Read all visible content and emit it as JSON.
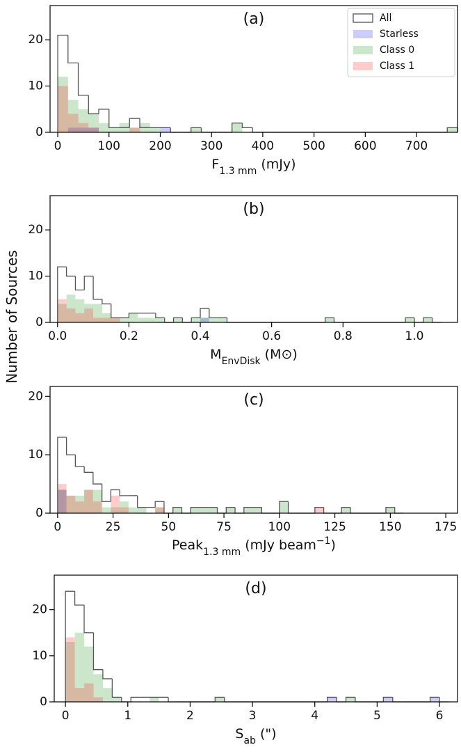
{
  "ylabel": "Number of Sources",
  "chart_data": [
    {
      "type": "histogram",
      "title": "(a)",
      "xlabel": [
        {
          "text": "F"
        },
        {
          "text": "1.3 mm",
          "style": "sub"
        },
        {
          "text": " (mJy)"
        }
      ],
      "xlim": [
        -15,
        780
      ],
      "xticks": [
        0,
        100,
        200,
        300,
        400,
        500,
        600,
        700
      ],
      "ylim": [
        0,
        27.4
      ],
      "yticks": [
        0,
        10,
        20
      ],
      "legend": "upper right",
      "bins": [
        0,
        20,
        40,
        60,
        80,
        100,
        120,
        140,
        160,
        180,
        200,
        220,
        240,
        260,
        280,
        300,
        320,
        340,
        360,
        380,
        400,
        420,
        440,
        460,
        480,
        500,
        520,
        540,
        560,
        580,
        600,
        620,
        640,
        660,
        680,
        700,
        720,
        740,
        760,
        780
      ],
      "series": [
        {
          "name": "All",
          "color": "#555555",
          "histtype": "step",
          "values": [
            21,
            15,
            8,
            4,
            5,
            1,
            1,
            3,
            1,
            1,
            1,
            0,
            0,
            1,
            0,
            0,
            0,
            2,
            1,
            0,
            0,
            0,
            0,
            0,
            0,
            0,
            0,
            0,
            0,
            0,
            0,
            0,
            0,
            0,
            0,
            0,
            0,
            0,
            1
          ]
        },
        {
          "name": "Starless",
          "color": "blue",
          "histtype": "stepfilled",
          "alpha": 0.2,
          "values": [
            0,
            1,
            1,
            1,
            0,
            0,
            0,
            0,
            0,
            0,
            1,
            0,
            0,
            0,
            0,
            0,
            0,
            0,
            0,
            0,
            0,
            0,
            0,
            0,
            0,
            0,
            0,
            0,
            0,
            0,
            0,
            0,
            0,
            0,
            0,
            0,
            0,
            0,
            0
          ]
        },
        {
          "name": "Class 0",
          "color": "green",
          "histtype": "stepfilled",
          "alpha": 0.2,
          "values": [
            12,
            7,
            5,
            4,
            2,
            1,
            2,
            1,
            2,
            1,
            0,
            0,
            0,
            1,
            0,
            0,
            0,
            2,
            0,
            0,
            0,
            0,
            0,
            0,
            0,
            0,
            0,
            0,
            0,
            0,
            0,
            0,
            0,
            0,
            0,
            0,
            0,
            0,
            1
          ]
        },
        {
          "name": "Class 1",
          "color": "red",
          "histtype": "stepfilled",
          "alpha": 0.2,
          "values": [
            10,
            4,
            2,
            1,
            0,
            0,
            0,
            1,
            0,
            0,
            0,
            0,
            0,
            0,
            0,
            0,
            0,
            0,
            0,
            0,
            0,
            0,
            0,
            0,
            0,
            0,
            0,
            0,
            0,
            0,
            0,
            0,
            0,
            0,
            0,
            0,
            0,
            0,
            0
          ]
        }
      ]
    },
    {
      "type": "histogram",
      "title": "(b)",
      "xlabel": [
        {
          "text": "M"
        },
        {
          "text": "EnvDisk",
          "style": "sub"
        },
        {
          "text": " (M⊙)"
        }
      ],
      "xlim": [
        -0.021,
        1.121
      ],
      "xticks": [
        {
          "value": 0,
          "label": "0.0"
        },
        {
          "value": 0.2,
          "label": "0.2"
        },
        {
          "value": 0.4,
          "label": "0.4"
        },
        {
          "value": 0.6,
          "label": "0.6"
        },
        {
          "value": 0.8,
          "label": "0.8"
        },
        {
          "value": 1,
          "label": "1.0"
        }
      ],
      "ylim": [
        0,
        27.4
      ],
      "yticks": [
        0,
        10,
        20
      ],
      "bins": [
        0,
        0.025,
        0.05,
        0.075,
        0.1,
        0.125,
        0.15,
        0.175,
        0.2,
        0.225,
        0.25,
        0.275,
        0.3,
        0.325,
        0.35,
        0.375,
        0.4,
        0.425,
        0.45,
        0.475,
        0.5,
        0.525,
        0.55,
        0.575,
        0.6,
        0.625,
        0.65,
        0.675,
        0.7,
        0.725,
        0.75,
        0.775,
        0.8,
        0.825,
        0.85,
        0.875,
        0.9,
        0.925,
        0.95,
        0.975,
        1,
        1.025,
        1.05,
        1.075
      ],
      "series": [
        {
          "name": "All",
          "color": "#555555",
          "histtype": "step",
          "values": [
            12,
            10,
            7,
            10,
            5,
            4,
            1,
            1,
            2,
            2,
            2,
            1,
            0,
            1,
            0,
            1,
            3,
            1,
            1,
            0,
            0,
            0,
            0,
            0,
            0,
            0,
            0,
            0,
            0,
            0,
            1,
            0,
            0,
            0,
            0,
            0,
            0,
            0,
            0,
            1,
            0,
            1,
            0
          ]
        },
        {
          "name": "Starless",
          "color": "blue",
          "histtype": "stepfilled",
          "alpha": 0.2,
          "values": [
            0,
            0,
            0,
            0,
            0,
            0,
            0,
            0,
            0,
            0,
            0,
            0,
            0,
            0,
            0,
            0,
            1,
            0,
            0,
            0,
            0,
            0,
            0,
            0,
            0,
            0,
            0,
            0,
            0,
            0,
            0,
            0,
            0,
            0,
            0,
            0,
            0,
            0,
            0,
            0,
            0,
            0,
            0
          ]
        },
        {
          "name": "Class 0",
          "color": "green",
          "histtype": "stepfilled",
          "alpha": 0.2,
          "values": [
            4,
            6,
            5,
            4,
            4,
            2,
            1,
            1,
            2,
            1,
            1,
            1,
            0,
            1,
            0,
            1,
            1,
            1,
            1,
            0,
            0,
            0,
            0,
            0,
            0,
            0,
            0,
            0,
            0,
            0,
            1,
            0,
            0,
            0,
            0,
            0,
            0,
            0,
            0,
            1,
            0,
            1,
            0
          ]
        },
        {
          "name": "Class 1",
          "color": "red",
          "histtype": "stepfilled",
          "alpha": 0.2,
          "values": [
            5,
            3,
            2,
            3,
            1,
            1,
            1,
            0,
            0,
            0,
            0,
            0,
            0,
            0,
            0,
            0,
            0,
            0,
            0,
            0,
            0,
            0,
            0,
            0,
            0,
            0,
            0,
            0,
            0,
            0,
            0,
            0,
            0,
            0,
            0,
            0,
            0,
            0,
            0,
            0,
            0,
            0,
            0
          ]
        }
      ]
    },
    {
      "type": "histogram",
      "title": "(c)",
      "xlabel": [
        {
          "text": "Peak"
        },
        {
          "text": "1.3 mm",
          "style": "sub"
        },
        {
          "text": " (mJy beam"
        },
        {
          "text": "−1",
          "style": "super"
        },
        {
          "text": ")"
        }
      ],
      "xlim": [
        -3.4,
        180.3
      ],
      "xticks": [
        0,
        25,
        50,
        75,
        100,
        125,
        150,
        175
      ],
      "ylim": [
        0,
        21.7
      ],
      "yticks": [
        0,
        10,
        20
      ],
      "bins": [
        0,
        4,
        8,
        12,
        16,
        20,
        24,
        28,
        32,
        36,
        40,
        44,
        48,
        52,
        56,
        60,
        64,
        68,
        72,
        76,
        80,
        84,
        88,
        92,
        96,
        100,
        104,
        108,
        112,
        116,
        120,
        124,
        128,
        132,
        136,
        140,
        144,
        148,
        152,
        156
      ],
      "series": [
        {
          "name": "All",
          "color": "#555555",
          "histtype": "step",
          "values": [
            13,
            10,
            8,
            7,
            5,
            2,
            4,
            3,
            3,
            1,
            1,
            2,
            0,
            1,
            0,
            1,
            1,
            1,
            0,
            1,
            0,
            1,
            1,
            0,
            0,
            2,
            0,
            0,
            0,
            1,
            0,
            0,
            1,
            0,
            0,
            0,
            0,
            1,
            0
          ]
        },
        {
          "name": "Starless",
          "color": "blue",
          "histtype": "stepfilled",
          "alpha": 0.2,
          "values": [
            4,
            0,
            0,
            0,
            0,
            0,
            0,
            0,
            0,
            0,
            0,
            0,
            0,
            0,
            0,
            0,
            0,
            0,
            0,
            0,
            0,
            0,
            0,
            0,
            0,
            0,
            0,
            0,
            0,
            0,
            0,
            0,
            0,
            0,
            0,
            0,
            0,
            0,
            0
          ]
        },
        {
          "name": "Class 0",
          "color": "green",
          "histtype": "stepfilled",
          "alpha": 0.2,
          "values": [
            4,
            3,
            3,
            4,
            4,
            1,
            1,
            2,
            1,
            1,
            0,
            1,
            0,
            1,
            0,
            1,
            1,
            1,
            0,
            1,
            0,
            1,
            1,
            0,
            0,
            2,
            0,
            0,
            0,
            0,
            0,
            0,
            1,
            0,
            0,
            0,
            0,
            1,
            0
          ]
        },
        {
          "name": "Class 1",
          "color": "red",
          "histtype": "stepfilled",
          "alpha": 0.2,
          "values": [
            5,
            3,
            2,
            4,
            2,
            0,
            3,
            1,
            0,
            0,
            0,
            1,
            0,
            0,
            0,
            0,
            0,
            0,
            0,
            0,
            0,
            0,
            0,
            0,
            0,
            0,
            0,
            0,
            0,
            1,
            0,
            0,
            0,
            0,
            0,
            0,
            0,
            0,
            0
          ]
        }
      ]
    },
    {
      "type": "histogram",
      "title": "(d)",
      "xlabel": [
        {
          "text": "S"
        },
        {
          "text": "ab",
          "style": "sub"
        },
        {
          "text": " (\")"
        }
      ],
      "xlim": [
        -0.18,
        6.29
      ],
      "xticks": [
        0,
        1,
        2,
        3,
        4,
        5,
        6
      ],
      "ylim": [
        0,
        27.5
      ],
      "yticks": [
        0,
        10,
        20
      ],
      "bins": [
        0,
        0.15,
        0.3,
        0.45,
        0.6,
        0.75,
        0.9,
        1.05,
        1.2,
        1.35,
        1.5,
        1.65,
        1.8,
        1.95,
        2.1,
        2.25,
        2.4,
        2.55,
        2.7,
        2.85,
        3,
        3.15,
        3.3,
        3.45,
        3.6,
        3.75,
        3.9,
        4.05,
        4.2,
        4.35,
        4.5,
        4.65,
        4.8,
        4.95,
        5.1,
        5.25,
        5.4,
        5.55,
        5.7,
        5.85,
        6,
        6.15
      ],
      "series": [
        {
          "name": "All",
          "color": "#555555",
          "histtype": "step",
          "values": [
            24,
            21,
            15,
            7,
            5,
            1,
            0,
            1,
            1,
            1,
            1,
            0,
            0,
            0,
            0,
            0,
            1,
            0,
            0,
            0,
            0,
            0,
            0,
            0,
            0,
            0,
            0,
            0,
            1,
            0,
            1,
            0,
            0,
            0,
            1,
            0,
            0,
            0,
            0,
            1,
            0
          ]
        },
        {
          "name": "Starless",
          "color": "blue",
          "histtype": "stepfilled",
          "alpha": 0.2,
          "values": [
            0,
            0,
            0,
            0,
            0,
            0,
            0,
            0,
            0,
            0,
            0,
            0,
            0,
            0,
            0,
            0,
            0,
            0,
            0,
            0,
            0,
            0,
            0,
            0,
            0,
            0,
            0,
            0,
            1,
            0,
            0,
            0,
            0,
            0,
            1,
            0,
            0,
            0,
            0,
            1,
            0
          ]
        },
        {
          "name": "Class 0",
          "color": "green",
          "histtype": "stepfilled",
          "alpha": 0.2,
          "values": [
            13,
            15,
            12,
            6,
            3,
            1,
            0,
            0,
            0,
            1,
            0,
            0,
            0,
            0,
            0,
            0,
            1,
            0,
            0,
            0,
            0,
            0,
            0,
            0,
            0,
            0,
            0,
            0,
            0,
            0,
            1,
            0,
            0,
            0,
            0,
            0,
            0,
            0,
            0,
            0,
            0
          ]
        },
        {
          "name": "Class 1",
          "color": "red",
          "histtype": "stepfilled",
          "alpha": 0.2,
          "values": [
            14,
            3,
            4,
            1,
            0,
            0,
            0,
            0,
            0,
            0,
            0,
            0,
            0,
            0,
            0,
            0,
            0,
            0,
            0,
            0,
            0,
            0,
            0,
            0,
            0,
            0,
            0,
            0,
            0,
            0,
            0,
            0,
            0,
            0,
            0,
            0,
            0,
            0,
            0,
            0,
            0
          ]
        }
      ]
    }
  ]
}
